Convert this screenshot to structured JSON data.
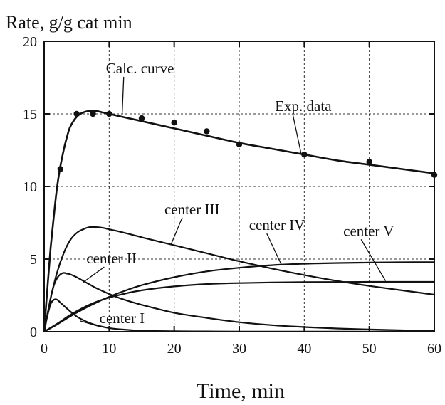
{
  "chart_data": {
    "type": "line",
    "ylabel": "Rate, g/g cat min",
    "xlabel": "Time, min",
    "xlim": [
      0,
      60
    ],
    "ylim": [
      0,
      20
    ],
    "x_ticks": [
      0,
      10,
      20,
      30,
      40,
      50,
      60
    ],
    "y_ticks": [
      0,
      5,
      10,
      15,
      20
    ],
    "grid": true,
    "series": [
      {
        "name": "Calc. curve",
        "x": [
          0,
          0.5,
          1,
          1.5,
          2,
          2.5,
          3,
          3.5,
          4,
          5,
          6,
          7,
          8,
          9,
          10,
          12,
          15,
          20,
          25,
          30,
          35,
          40,
          45,
          50,
          55,
          60
        ],
        "y": [
          0,
          3.0,
          5.8,
          8.0,
          10.0,
          11.4,
          12.5,
          13.4,
          14.1,
          14.8,
          15.1,
          15.2,
          15.2,
          15.1,
          15.0,
          14.8,
          14.5,
          14.0,
          13.5,
          13.0,
          12.6,
          12.2,
          11.8,
          11.5,
          11.2,
          10.9
        ]
      },
      {
        "name": "center I",
        "x": [
          0,
          0.5,
          1,
          1.5,
          2,
          2.5,
          3,
          4,
          5,
          6,
          7,
          8,
          10,
          12,
          15,
          20,
          25,
          30,
          40,
          50,
          60
        ],
        "y": [
          0,
          1.1,
          1.9,
          2.2,
          2.2,
          2.0,
          1.8,
          1.4,
          1.05,
          0.8,
          0.6,
          0.45,
          0.25,
          0.15,
          0.07,
          0.03,
          0.02,
          0.01,
          0.01,
          0.01,
          0.01
        ]
      },
      {
        "name": "center II",
        "x": [
          0,
          1,
          1.5,
          2,
          2.5,
          3,
          3.5,
          4,
          5,
          6,
          7,
          8,
          10,
          12,
          15,
          20,
          25,
          30,
          35,
          40,
          45,
          50,
          55,
          60
        ],
        "y": [
          0,
          2.3,
          3.2,
          3.7,
          3.95,
          4.05,
          4.0,
          3.95,
          3.75,
          3.5,
          3.25,
          3.0,
          2.6,
          2.25,
          1.85,
          1.3,
          0.95,
          0.65,
          0.45,
          0.32,
          0.22,
          0.15,
          0.1,
          0.06
        ]
      },
      {
        "name": "center III",
        "x": [
          0,
          1,
          2,
          3,
          4,
          5,
          6,
          7,
          8,
          9,
          10,
          12,
          15,
          20,
          25,
          30,
          35,
          40,
          45,
          50,
          55,
          60
        ],
        "y": [
          0,
          2.3,
          4.1,
          5.4,
          6.3,
          6.8,
          7.05,
          7.2,
          7.2,
          7.15,
          7.05,
          6.85,
          6.5,
          5.95,
          5.4,
          4.85,
          4.35,
          3.9,
          3.5,
          3.15,
          2.85,
          2.55
        ]
      },
      {
        "name": "center IV",
        "x": [
          0,
          2,
          4,
          6,
          8,
          10,
          12,
          15,
          20,
          25,
          30,
          35,
          40,
          45,
          50,
          55,
          60
        ],
        "y": [
          0,
          0.5,
          1.05,
          1.55,
          2.0,
          2.4,
          2.75,
          3.2,
          3.75,
          4.15,
          4.4,
          4.58,
          4.68,
          4.73,
          4.76,
          4.78,
          4.79
        ]
      },
      {
        "name": "center V",
        "x": [
          0,
          2,
          4,
          6,
          8,
          10,
          12,
          15,
          20,
          25,
          30,
          35,
          40,
          45,
          50,
          55,
          60
        ],
        "y": [
          0,
          0.55,
          1.15,
          1.65,
          2.05,
          2.35,
          2.58,
          2.85,
          3.12,
          3.28,
          3.35,
          3.39,
          3.41,
          3.42,
          3.43,
          3.43,
          3.43
        ]
      }
    ],
    "points": {
      "name": "Exp. data",
      "x": [
        2.5,
        5,
        7.5,
        10,
        15,
        20,
        25,
        30,
        40,
        50,
        60
      ],
      "y": [
        11.2,
        15.0,
        15.0,
        15.0,
        14.7,
        14.4,
        13.8,
        12.9,
        12.2,
        11.7,
        10.8
      ]
    },
    "annotations": [
      {
        "text": "Calc. curve",
        "label_at": [
          9.5,
          17.8
        ],
        "arrow_to": [
          12,
          15.0
        ]
      },
      {
        "text": "Exp. data",
        "label_at": [
          35.5,
          15.2
        ],
        "arrow_to": [
          39.5,
          12.3
        ]
      },
      {
        "text": "center III",
        "label_at": [
          18.5,
          8.1
        ],
        "arrow_to": [
          19.5,
          6.0
        ]
      },
      {
        "text": "center IV",
        "label_at": [
          31.5,
          7.0
        ],
        "arrow_to": [
          36.5,
          4.6
        ]
      },
      {
        "text": "center V",
        "label_at": [
          46,
          6.6
        ],
        "arrow_to": [
          52.5,
          3.5
        ]
      },
      {
        "text": "center II",
        "label_at": [
          6.5,
          4.7
        ],
        "arrow_to": [
          6,
          3.4
        ]
      },
      {
        "text": "center I",
        "label_at": [
          8.5,
          0.6
        ],
        "arrow_to": [
          5.5,
          0.75
        ]
      }
    ]
  }
}
